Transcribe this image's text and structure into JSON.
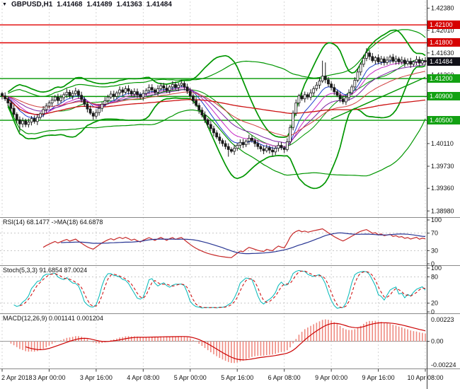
{
  "window": {
    "symbol_icon": "▼",
    "title": {
      "symbol": "GBPUSD,H1",
      "open": "1.41468",
      "high": "1.41489",
      "low": "1.41363",
      "close": "1.41484"
    }
  },
  "colors": {
    "background": "#ffffff",
    "grid": "#cccccc",
    "separator": "#8a8a8a",
    "axis_line": "#3c3c3c",
    "text": "#101010",
    "candle_up_fill": "#ffffff",
    "candle_down_fill": "#1a1a1a",
    "candle_border": "#1a1a1a",
    "bollinger": "#009600",
    "resistance_line": "#e00000",
    "support_line": "#009600",
    "trendline": "#009600",
    "ma_fast": "#2040cc",
    "ma_mid": "#c628c6",
    "ma_slow": "#7b1fa2",
    "ma_extra": "#d04040",
    "ma_long": "#cc1111",
    "rsi_line": "#c62828",
    "rsi_ma_line": "#283593",
    "stoch_k": "#00b8b8",
    "stoch_d": "#cc0000",
    "macd_hist": "#ef8a80",
    "macd_signal": "#cc0000",
    "panel_level": "#b5b5b5"
  },
  "main_axis": {
    "ticks": [
      {
        "label": "1.42380",
        "value": 1.4238
      },
      {
        "label": "1.42010",
        "value": 1.4201
      },
      {
        "label": "1.41630",
        "value": 1.4163
      },
      {
        "label": "1.41260",
        "value": 1.4126
      },
      {
        "label": "1.40880",
        "value": 1.4088
      },
      {
        "label": "1.40500",
        "value": 1.405
      },
      {
        "label": "1.40110",
        "value": 1.4011
      },
      {
        "label": "1.39730",
        "value": 1.3973
      },
      {
        "label": "1.39360",
        "value": 1.3936
      },
      {
        "label": "1.38980",
        "value": 1.3898
      }
    ]
  },
  "badges": [
    {
      "label": "1.42100",
      "value": 1.421,
      "bg": "#d60000",
      "kind": "resistance"
    },
    {
      "label": "1.41800",
      "value": 1.418,
      "bg": "#d60000",
      "kind": "resistance"
    },
    {
      "label": "1.41484",
      "value": 1.41484,
      "bg": "#101018",
      "kind": "current-price"
    },
    {
      "label": "1.41200",
      "value": 1.412,
      "bg": "#12a112",
      "kind": "support"
    },
    {
      "label": "1.40900",
      "value": 1.409,
      "bg": "#12a112",
      "kind": "support"
    },
    {
      "label": "1.40500",
      "value": 1.405,
      "bg": "#12a112",
      "kind": "support"
    }
  ],
  "levels": {
    "resistance": [
      1.421,
      1.418
    ],
    "support": [
      1.412,
      1.409,
      1.405
    ]
  },
  "panels": {
    "rsi": {
      "label": "RSI(14) 68.1477 ->MA(18) 64.6878",
      "ticks": [
        {
          "t": "100",
          "v": 100
        },
        {
          "t": "70",
          "v": 70
        },
        {
          "t": "30",
          "v": 30
        },
        {
          "t": "0",
          "v": 0
        }
      ],
      "levels": [
        70,
        30
      ]
    },
    "stoch": {
      "label": "Stoch(5,3,3) 91.6854 87.0024",
      "ticks": [
        {
          "t": "100",
          "v": 100
        },
        {
          "t": "80",
          "v": 80
        },
        {
          "t": "20",
          "v": 20
        },
        {
          "t": "0",
          "v": 0
        }
      ],
      "levels": [
        80,
        20
      ]
    },
    "macd": {
      "label": "MACD(12,26,9) 0.001141 0.001204",
      "tick_top": "0.00223",
      "tick_mid": "0.00",
      "tick_bottom": "-0.00224"
    }
  },
  "time_axis": {
    "labels": [
      {
        "text": "2 Apr 2018",
        "bar": 0
      },
      {
        "text": "3 Apr 00:00",
        "bar": 16
      },
      {
        "text": "3 Apr 16:00",
        "bar": 32
      },
      {
        "text": "4 Apr 08:00",
        "bar": 48
      },
      {
        "text": "5 Apr 00:00",
        "bar": 64
      },
      {
        "text": "5 Apr 16:00",
        "bar": 80
      },
      {
        "text": "6 Apr 08:00",
        "bar": 96
      },
      {
        "text": "9 Apr 00:00",
        "bar": 112
      },
      {
        "text": "9 Apr 16:00",
        "bar": 128
      },
      {
        "text": "10 Apr 08:00",
        "bar": 144
      }
    ]
  },
  "chart_data": {
    "type": "candlestick",
    "symbol": "GBPUSD",
    "timeframe": "H1",
    "title": "GBPUSD,H1 1.41468 1.41489 1.41363 1.41484",
    "ylim": [
      1.389,
      1.4247
    ],
    "bars_start": "2 Apr 2018 08:00",
    "bars_end": "10 Apr 2018 08:00",
    "closes": [
      1.4091,
      1.4086,
      1.4079,
      1.407,
      1.406,
      1.4051,
      1.4044,
      1.4049,
      1.4043,
      1.4047,
      1.4053,
      1.4048,
      1.4055,
      1.4061,
      1.4068,
      1.4074,
      1.4079,
      1.4084,
      1.4089,
      1.4083,
      1.4088,
      1.4093,
      1.4097,
      1.4091,
      1.4095,
      1.4099,
      1.4092,
      1.4085,
      1.4077,
      1.4069,
      1.4062,
      1.4057,
      1.4063,
      1.407,
      1.4077,
      1.4083,
      1.4089,
      1.4094,
      1.409,
      1.4096,
      1.4101,
      1.4097,
      1.4103,
      1.4099,
      1.4094,
      1.4098,
      1.4093,
      1.4089,
      1.4095,
      1.41,
      1.4105,
      1.4101,
      1.4097,
      1.4103,
      1.4108,
      1.4104,
      1.41,
      1.4106,
      1.411,
      1.4105,
      1.4109,
      1.4112,
      1.4106,
      1.4099,
      1.4091,
      1.4083,
      1.4075,
      1.4067,
      1.4059,
      1.4051,
      1.4043,
      1.4036,
      1.4029,
      1.4022,
      1.4016,
      1.4011,
      1.4006,
      1.4001,
      1.3998,
      1.4003,
      1.4008,
      1.4013,
      1.4009,
      1.4015,
      1.402,
      1.4016,
      1.4011,
      1.4006,
      1.4002,
      1.3999,
      1.4004,
      1.4,
      1.3997,
      1.4003,
      1.4008,
      1.4004,
      1.4001,
      1.4014,
      1.4038,
      1.4062,
      1.4079,
      1.4091,
      1.4086,
      1.4093,
      1.4089,
      1.4096,
      1.4103,
      1.4109,
      1.4116,
      1.4124,
      1.4118,
      1.4111,
      1.4105,
      1.4098,
      1.4092,
      1.4086,
      1.4081,
      1.4088,
      1.4096,
      1.4106,
      1.4117,
      1.4131,
      1.4144,
      1.4154,
      1.4163,
      1.4157,
      1.415,
      1.4155,
      1.4148,
      1.4153,
      1.4147,
      1.4151,
      1.4156,
      1.4149,
      1.4153,
      1.4148,
      1.4151,
      1.4145,
      1.4149,
      1.4144,
      1.4148,
      1.4152,
      1.4146,
      1.415,
      1.41484
    ],
    "wick_high_overrides": {
      "109": 1.415,
      "110": 1.4147,
      "124": 1.4171
    },
    "wick_low_overrides": {
      "6": 1.4031,
      "77": 1.3989,
      "92": 1.399
    },
    "indicators": {
      "bollinger": [
        {
          "period": 20,
          "dev": 2.5
        },
        {
          "period": 48,
          "dev": 2.0
        }
      ],
      "ma_bundle": [
        {
          "period": 8,
          "type": "ema",
          "color_key": "ma_fast"
        },
        {
          "period": 13,
          "type": "ema",
          "color_key": "ma_mid"
        },
        {
          "period": 21,
          "type": "ema",
          "color_key": "ma_slow"
        },
        {
          "period": 34,
          "type": "ema",
          "color_key": "ma_extra"
        }
      ],
      "long_ma": {
        "period": 96,
        "type": "sma",
        "color_key": "ma_long"
      },
      "rsi": {
        "period": 14,
        "ma_period": 18,
        "value": 68.1477,
        "ma_value": 64.6878
      },
      "stoch": {
        "k": 5,
        "slowing": 3,
        "d": 3,
        "value": 91.6854,
        "d_value": 87.0024
      },
      "macd": {
        "fast": 12,
        "slow": 26,
        "signal": 9,
        "value": 0.001141,
        "signal_value": 0.001204
      }
    },
    "trendline": {
      "bar1": 112,
      "price1": 1.4052,
      "bar2": 144,
      "price2": 1.4122
    }
  }
}
